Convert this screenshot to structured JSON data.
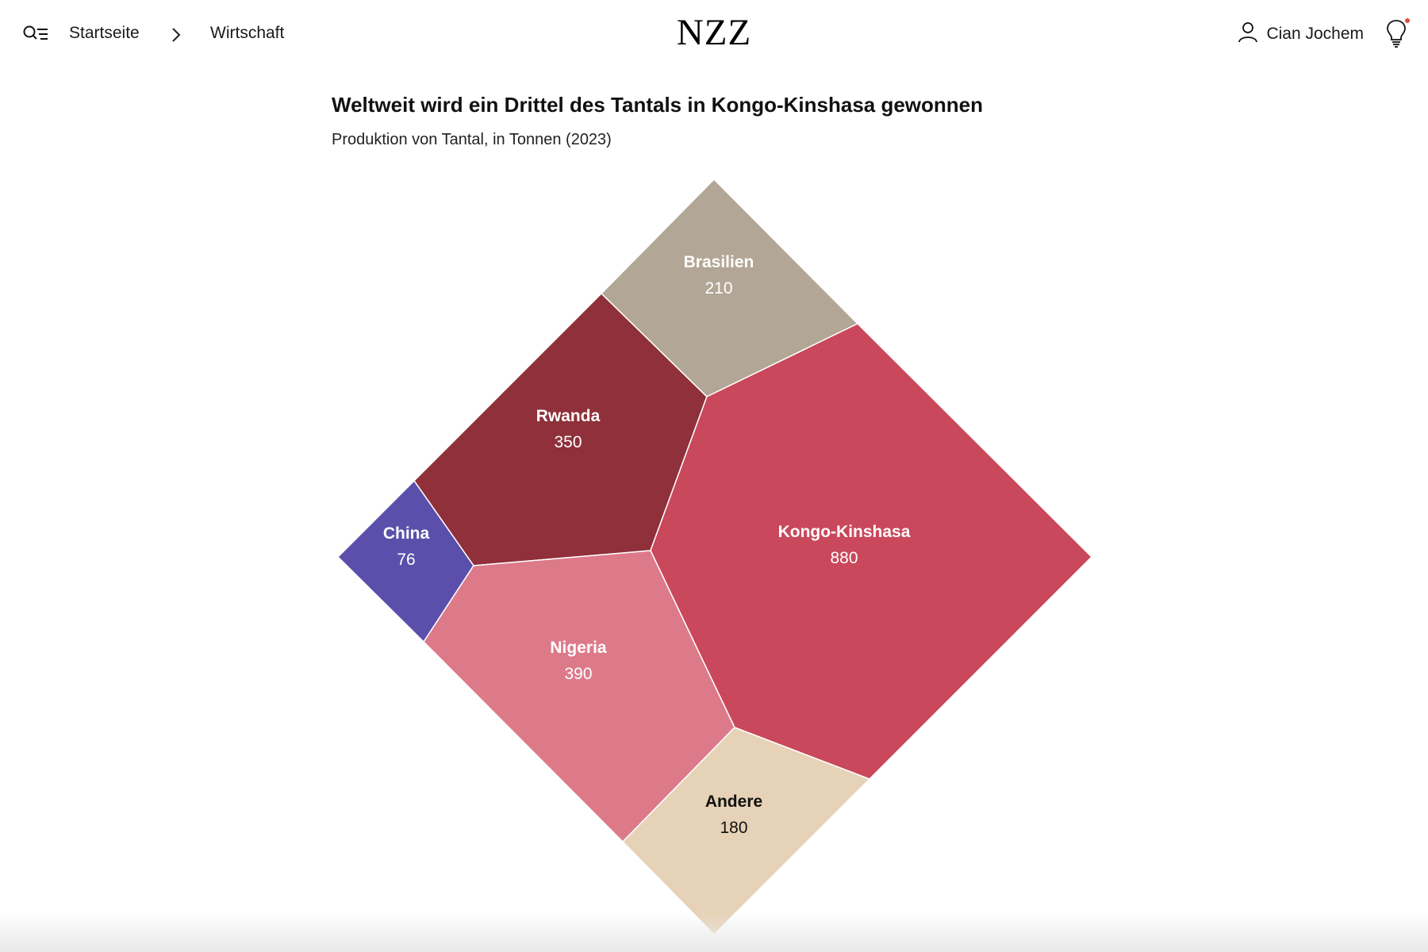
{
  "header": {
    "menu_icon": "menu-search-icon",
    "breadcrumb": {
      "home": "Startseite",
      "separator_icon": "chevron-right-icon",
      "current": "Wirtschaft"
    },
    "logo": "NZZ",
    "user": {
      "icon": "user-icon",
      "name": "Cian Jochem"
    },
    "notification_icon": "lightbulb-icon",
    "notification_dot_color": "#e8473a"
  },
  "article": {
    "headline": "Weltweit wird ein Drittel des Tantals in Kongo-Kinshasa gewonnen",
    "subline": "Produktion von Tantal, in Tonnen (2023)"
  },
  "chart_data": {
    "type": "voronoi-treemap",
    "title": "Weltweit wird ein Drittel des Tantals in Kongo-Kinshasa gewonnen",
    "subtitle": "Produktion von Tantal, in Tonnen (2023)",
    "unit": "Tonnen",
    "categories": [
      "Brasilien",
      "Rwanda",
      "China",
      "Kongo-Kinshasa",
      "Nigeria",
      "Andere"
    ],
    "values": [
      210,
      350,
      76,
      880,
      390,
      180
    ],
    "colors": [
      "#b2a696",
      "#8f303a",
      "#5b4fab",
      "#c9485b",
      "#dd7a8a",
      "#e6d2b6"
    ],
    "label_colors": [
      "#ffffff",
      "#ffffff",
      "#ffffff",
      "#ffffff",
      "#ffffff",
      "#111111"
    ]
  }
}
